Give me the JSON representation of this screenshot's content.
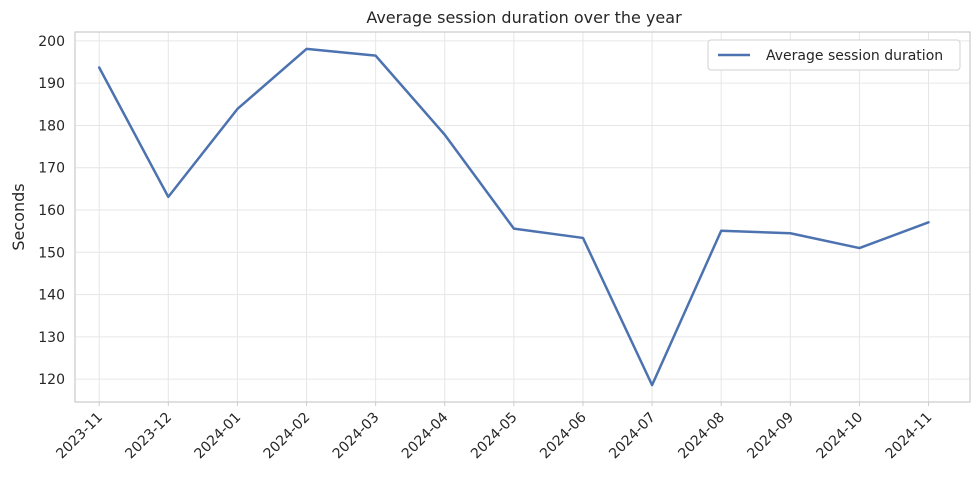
{
  "chart_data": {
    "type": "line",
    "title": "Average session duration over the year",
    "xlabel": "",
    "ylabel": "Seconds",
    "categories": [
      "2023-11",
      "2023-12",
      "2024-01",
      "2024-02",
      "2024-03",
      "2024-04",
      "2024-05",
      "2024-06",
      "2024-07",
      "2024-08",
      "2024-09",
      "2024-10",
      "2024-11"
    ],
    "series": [
      {
        "name": "Average session duration",
        "color": "#4c72b0",
        "values": [
          193.7,
          163.1,
          183.9,
          198.1,
          196.5,
          177.8,
          155.6,
          153.4,
          118.6,
          155.1,
          154.5,
          151.0,
          157.1
        ]
      }
    ],
    "yticks": [
      120,
      130,
      140,
      150,
      160,
      170,
      180,
      190,
      200
    ],
    "ylim": [
      114.6,
      202.1
    ],
    "grid": true,
    "legend": "top-right"
  }
}
